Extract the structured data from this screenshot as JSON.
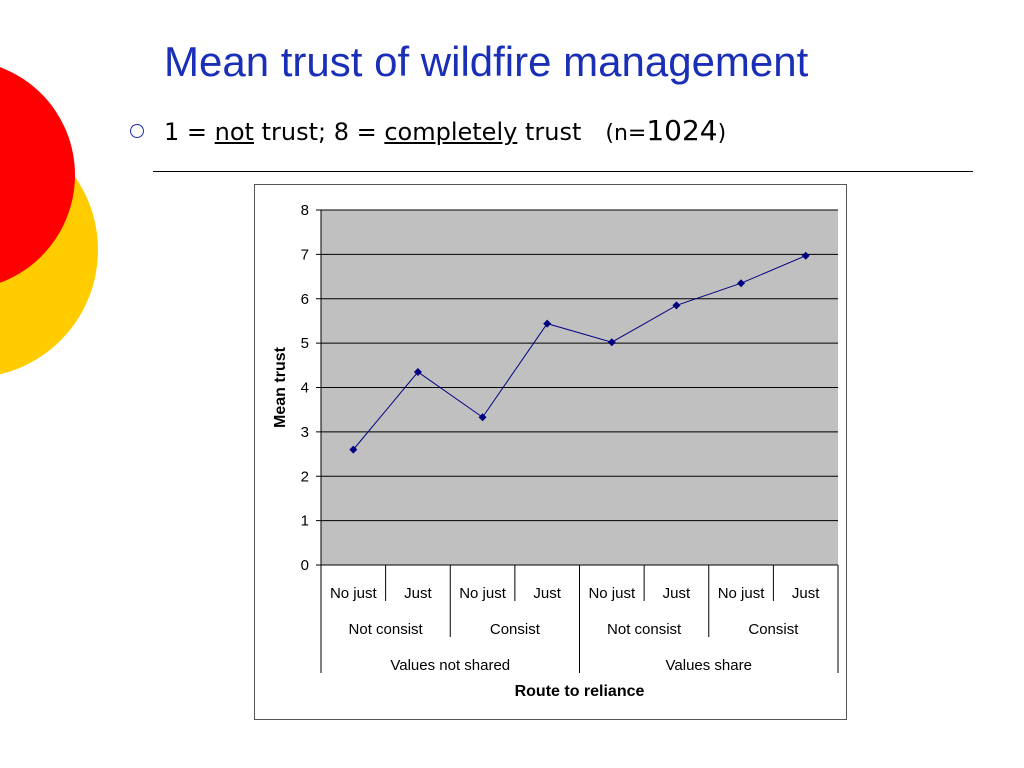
{
  "slide": {
    "title": "Mean trust of wildfire management",
    "subtitle_parts": {
      "prefix": "1 = ",
      "not_word": "not",
      "mid": " trust; 8 = ",
      "completely_word": "completely",
      "suffix": " trust",
      "n_open": "(n=",
      "n_value": "1024",
      "n_close": ")"
    },
    "colors": {
      "title": "#1a2fb8",
      "circle_red": "#ff0000",
      "circle_yellow": "#ffcc00"
    }
  },
  "chart_data": {
    "type": "line",
    "ylabel": "Mean trust",
    "xlabel": "Route to reliance",
    "ylim": [
      0,
      8
    ],
    "yticks": [
      0,
      1,
      2,
      3,
      4,
      5,
      6,
      7,
      8
    ],
    "grid": true,
    "plot_background": "#c0c0c0",
    "line_color": "#000080",
    "categories_level1": [
      "No just",
      "Just",
      "No just",
      "Just",
      "No just",
      "Just",
      "No just",
      "Just"
    ],
    "categories_level2": [
      "Not consist",
      "Consist",
      "Not consist",
      "Consist"
    ],
    "categories_level3": [
      "Values not shared",
      "Values share"
    ],
    "series": [
      {
        "values": [
          2.6,
          4.35,
          3.33,
          5.44,
          5.02,
          5.85,
          6.35,
          6.97
        ]
      }
    ]
  }
}
